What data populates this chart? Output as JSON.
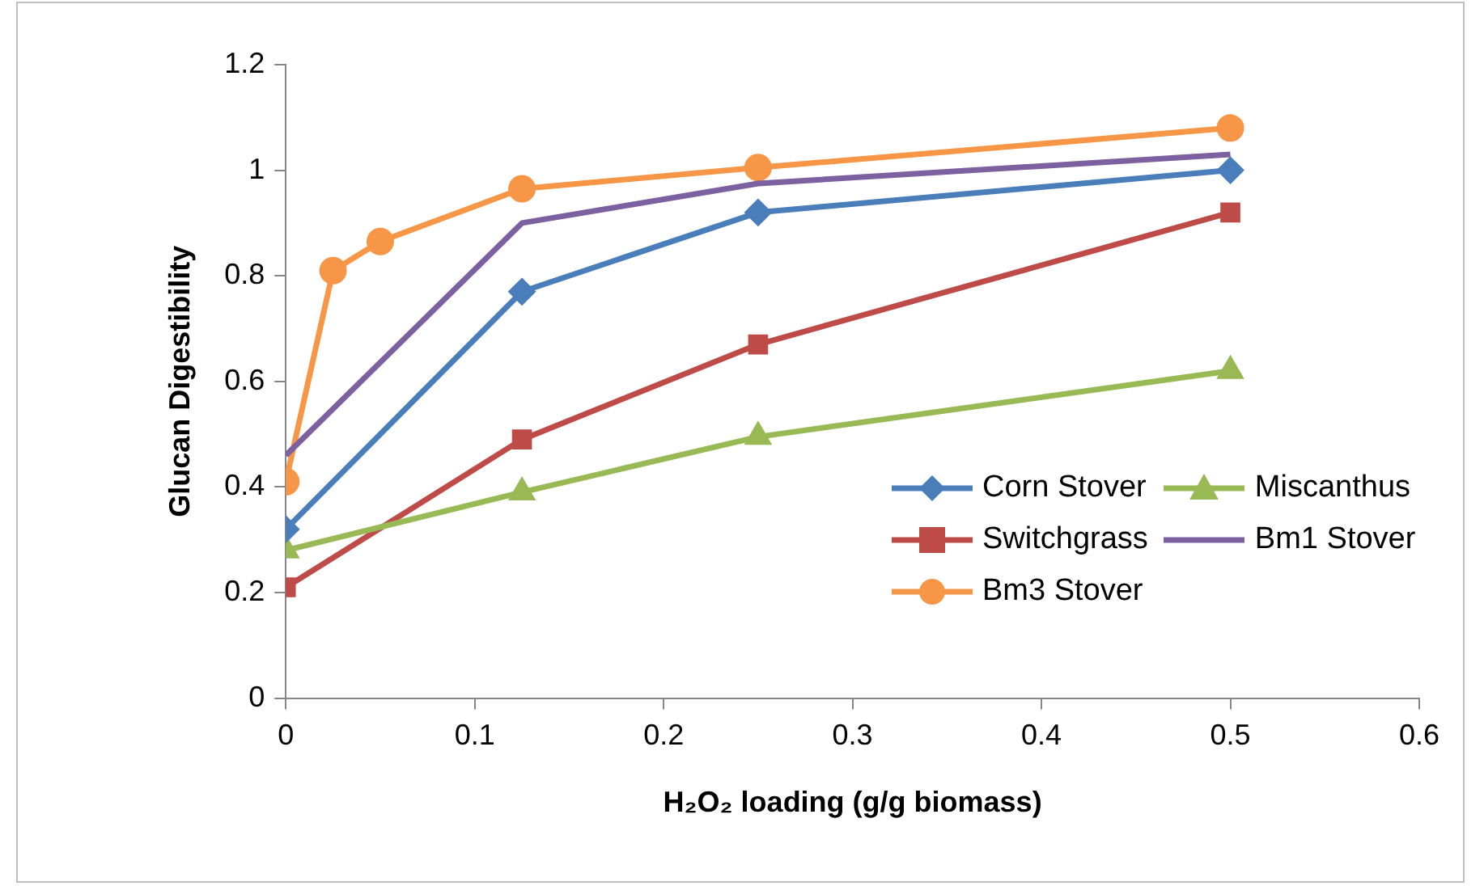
{
  "chart_data": {
    "type": "line",
    "xlabel": "H₂O₂ loading (g/g biomass)",
    "ylabel": "Glucan Digestibility",
    "xlim": [
      0,
      0.6
    ],
    "xticks": [
      0,
      0.1,
      0.2,
      0.3,
      0.4,
      0.5,
      0.6
    ],
    "ylim": [
      0,
      1.2
    ],
    "yticks": [
      0,
      0.2,
      0.4,
      0.6,
      0.8,
      1,
      1.2
    ],
    "grid": false,
    "legend": "bottom right",
    "line_style": "solid",
    "series": [
      {
        "name": "Corn Stover",
        "color": "#4a7ebb",
        "marker": "diamond",
        "x": [
          0,
          0.125,
          0.25,
          0.5
        ],
        "values": [
          0.32,
          0.77,
          0.92,
          1.0
        ]
      },
      {
        "name": "Miscanthus",
        "color": "#98b954",
        "marker": "triangle",
        "x": [
          0,
          0.125,
          0.25,
          0.5
        ],
        "values": [
          0.28,
          0.39,
          0.495,
          0.62
        ]
      },
      {
        "name": "Switchgrass",
        "color": "#be4b48",
        "marker": "square",
        "x": [
          0,
          0.125,
          0.25,
          0.5
        ],
        "values": [
          0.21,
          0.49,
          0.67,
          0.92
        ]
      },
      {
        "name": "Bm1 Stover",
        "color": "#7d60a0",
        "marker": "none",
        "x": [
          0,
          0.125,
          0.25,
          0.5
        ],
        "values": [
          0.46,
          0.9,
          0.975,
          1.03
        ]
      },
      {
        "name": "Bm3 Stover",
        "color": "#f79646",
        "marker": "circle",
        "x": [
          0,
          0.025,
          0.05,
          0.125,
          0.25,
          0.5
        ],
        "values": [
          0.41,
          0.81,
          0.865,
          0.965,
          1.005,
          1.08
        ]
      }
    ]
  }
}
